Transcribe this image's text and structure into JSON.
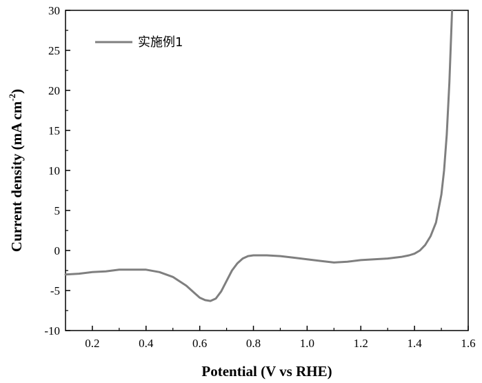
{
  "chart_data": {
    "type": "line",
    "xlabel": "Potential (V vs RHE)",
    "ylabel": "Current density (mA cm",
    "ylabel_sup": "-2",
    "ylabel_close": ")",
    "xlim": [
      0.1,
      1.6
    ],
    "ylim": [
      -10,
      30
    ],
    "xticks": [
      0.2,
      0.4,
      0.6,
      0.8,
      1.0,
      1.2,
      1.4,
      1.6
    ],
    "xtick_labels": [
      "0.2",
      "0.4",
      "0.6",
      "0.8",
      "1.0",
      "1.2",
      "1.4",
      "1.6"
    ],
    "yticks": [
      -10,
      -5,
      0,
      5,
      10,
      15,
      20,
      25,
      30
    ],
    "ytick_labels": [
      "-10",
      "-5",
      "0",
      "5",
      "10",
      "15",
      "20",
      "25",
      "30"
    ],
    "legend_position": "top-left",
    "grid": false,
    "series": [
      {
        "name": "实施例1",
        "color": "#7f7f7f",
        "x": [
          0.1,
          0.15,
          0.2,
          0.25,
          0.3,
          0.35,
          0.4,
          0.45,
          0.5,
          0.55,
          0.58,
          0.6,
          0.62,
          0.64,
          0.66,
          0.68,
          0.7,
          0.72,
          0.74,
          0.76,
          0.78,
          0.8,
          0.85,
          0.9,
          0.95,
          1.0,
          1.05,
          1.1,
          1.15,
          1.2,
          1.25,
          1.3,
          1.35,
          1.38,
          1.4,
          1.42,
          1.44,
          1.46,
          1.48,
          1.5,
          1.51,
          1.52,
          1.53,
          1.54
        ],
        "y": [
          -3.0,
          -2.9,
          -2.7,
          -2.6,
          -2.4,
          -2.4,
          -2.4,
          -2.7,
          -3.3,
          -4.4,
          -5.3,
          -5.9,
          -6.2,
          -6.3,
          -6.0,
          -5.1,
          -3.8,
          -2.5,
          -1.6,
          -1.0,
          -0.7,
          -0.6,
          -0.6,
          -0.7,
          -0.9,
          -1.1,
          -1.3,
          -1.5,
          -1.4,
          -1.2,
          -1.1,
          -1.0,
          -0.8,
          -0.6,
          -0.4,
          0.0,
          0.7,
          1.8,
          3.5,
          7.0,
          10.0,
          14.5,
          21.0,
          30.0
        ]
      }
    ]
  }
}
